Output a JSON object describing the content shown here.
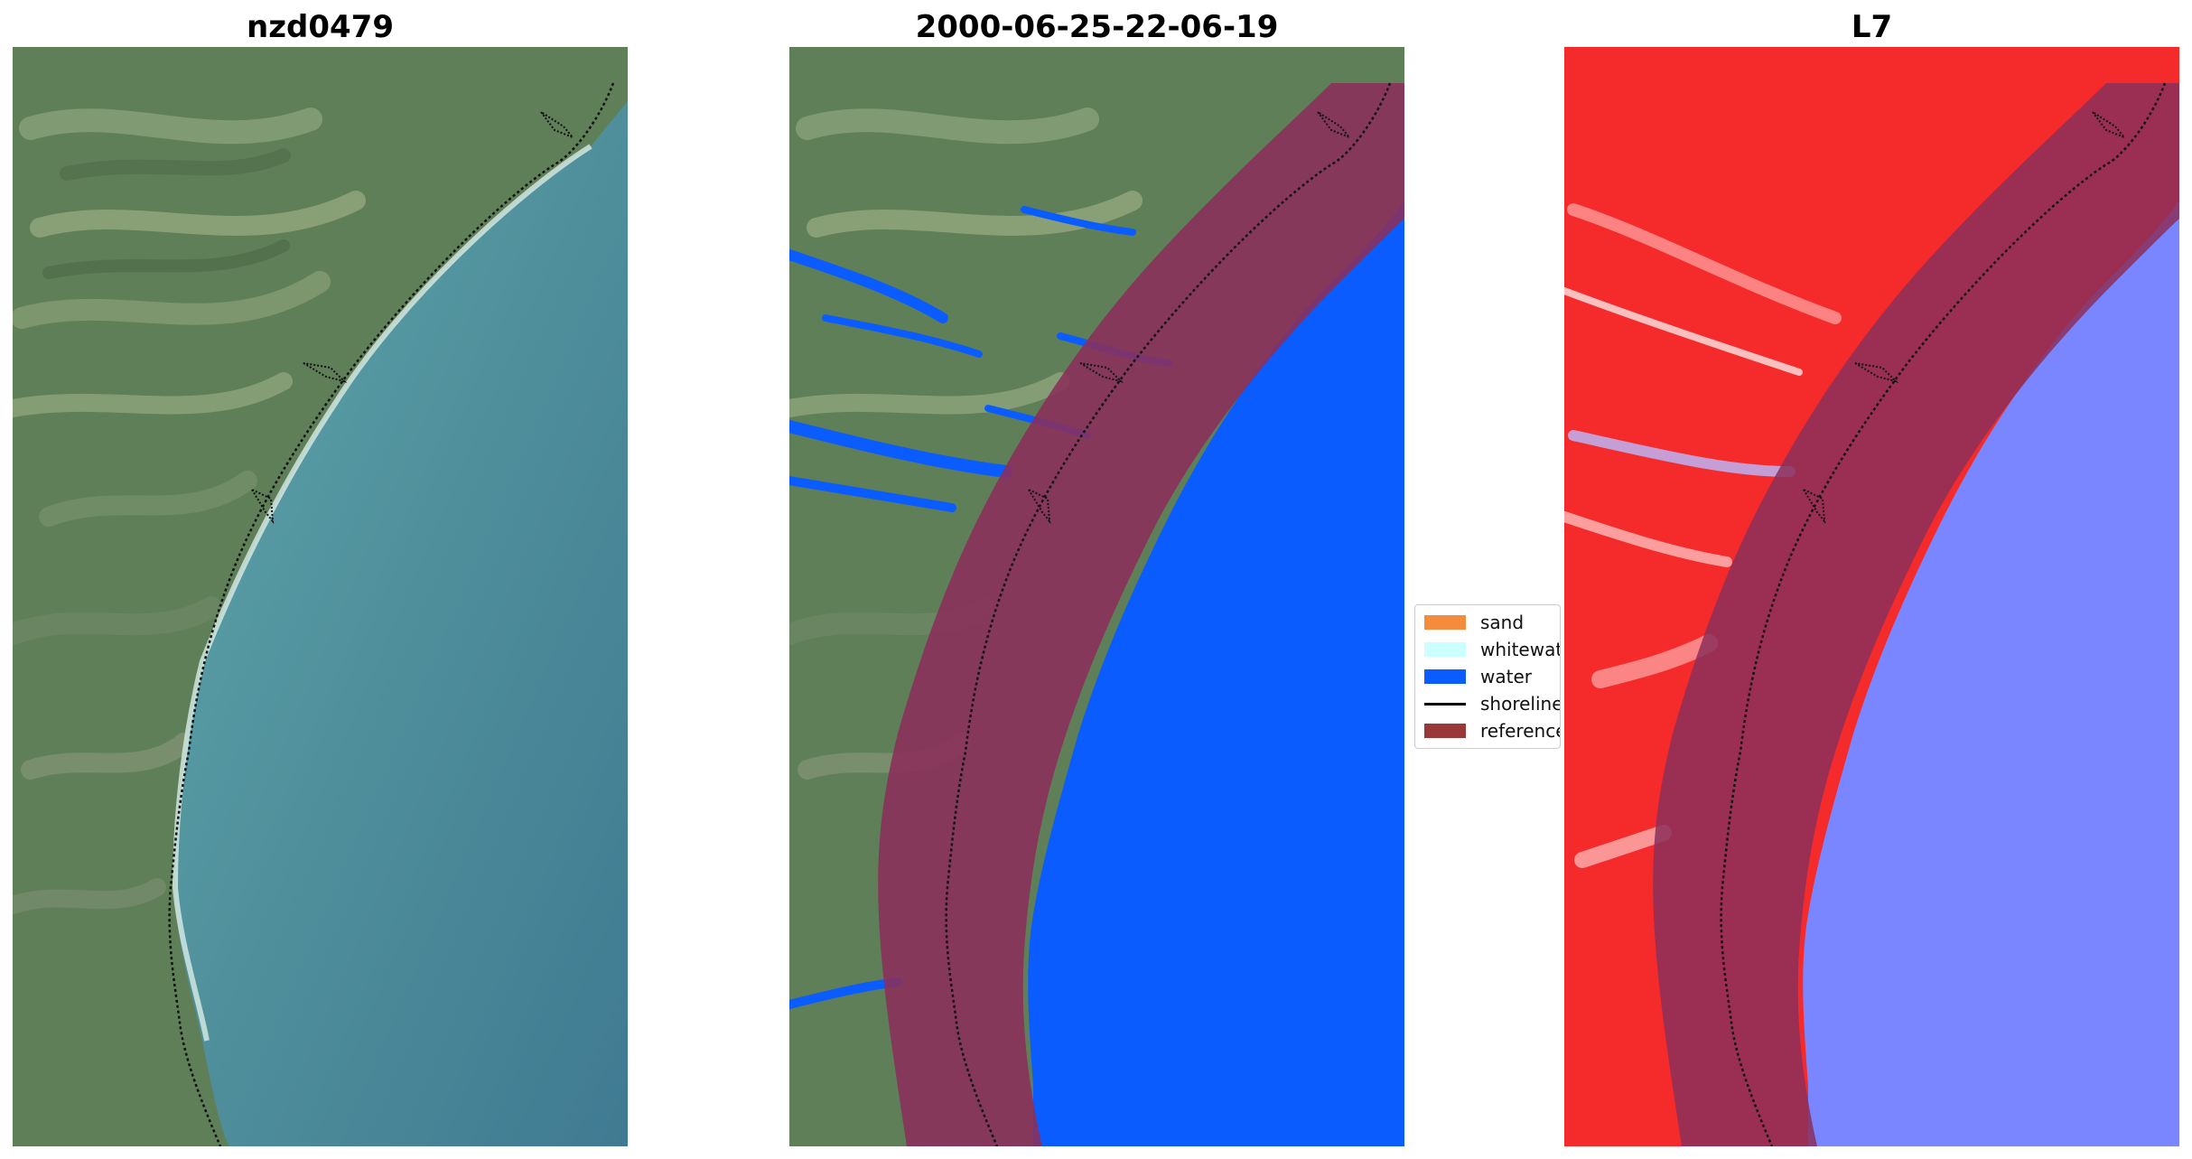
{
  "panels": {
    "left": {
      "title": "nzd0479"
    },
    "middle": {
      "title": "2000-06-25-22-06-19"
    },
    "right": {
      "title": "L7"
    }
  },
  "legend": {
    "items": [
      {
        "label": "sand",
        "color": "#f58b3c",
        "kind": "patch"
      },
      {
        "label": "whitewater",
        "color": "#ccffff",
        "kind": "patch"
      },
      {
        "label": "water",
        "color": "#0a5cff",
        "kind": "patch"
      },
      {
        "label": "shoreline",
        "color": "#000000",
        "kind": "line"
      },
      {
        "label": "reference",
        "color": "#9a3838",
        "kind": "patch"
      }
    ]
  },
  "colors": {
    "land": "#5f7f59",
    "sea": "#4f8f9b",
    "water_class": "#0a5cff",
    "reference_band": "#8b2f5a",
    "index_land": "#f52a2a",
    "index_water": "#7a86ff"
  }
}
